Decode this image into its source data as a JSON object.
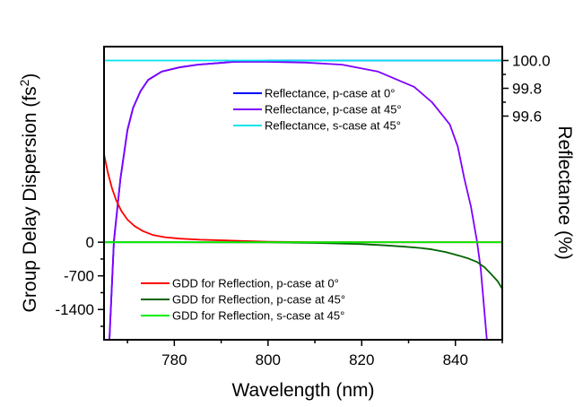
{
  "chart_data": {
    "type": "line",
    "title": "",
    "xlabel": "Wavelength (nm)",
    "ylabel_left": "Group Delay Dispersion (fs2)",
    "ylabel_left_parts": {
      "main": "Group Delay Dispersion (fs",
      "sup": "2",
      "end": ")"
    },
    "ylabel_right": "Reflectance (%)",
    "xlim": [
      765,
      850
    ],
    "ylim_left": [
      -2030,
      4070
    ],
    "ylim_right": [
      97.99,
      100.1
    ],
    "x_ticks": [
      780,
      800,
      820,
      840
    ],
    "x_minor_ticks": [
      770,
      790,
      810,
      830,
      850
    ],
    "x_tick_labels": [
      "780",
      "800",
      "820",
      "840"
    ],
    "y_left_ticks": [
      0,
      -700,
      -1400
    ],
    "y_left_tick_labels": [
      "0",
      "-700",
      "-1400"
    ],
    "y_left_minor_ticks": [
      -350,
      -1050,
      -1750
    ],
    "y_right_ticks": [
      100.0,
      99.8,
      99.6
    ],
    "y_right_tick_labels": [
      "100.0",
      "99.8",
      "99.6"
    ],
    "y_right_minor_ticks": [
      99.9,
      99.7
    ],
    "grid": false,
    "legends": [
      {
        "placement": "upper-center",
        "entries": [
          0,
          1,
          2
        ]
      },
      {
        "placement": "lower-left",
        "entries": [
          3,
          4,
          5
        ]
      }
    ],
    "series": [
      {
        "name": "Reflectance, p-case at 0°",
        "axis": "right",
        "color": "#0000ff",
        "x": [
          766.15,
          767.1,
          768.5,
          770.0,
          771.2,
          772.8,
          774.4,
          777.3,
          781.0,
          785.0,
          792.7,
          800.4,
          810.0,
          820.0,
          830.0,
          840.0,
          850.0
        ],
        "y": [
          97.99,
          98.7,
          99.15,
          99.5,
          99.66,
          99.78,
          99.86,
          99.92,
          99.95,
          99.97,
          99.99,
          100.0,
          100.0,
          100.0,
          100.0,
          100.0,
          100.0
        ]
      },
      {
        "name": "Reflectance, p-case at 45°",
        "axis": "right",
        "color": "#7f00ff",
        "x": [
          766.15,
          767.1,
          768.5,
          770.0,
          771.2,
          772.8,
          774.4,
          777.3,
          781.0,
          785.0,
          792.7,
          800.0,
          808.0,
          815.8,
          823.5,
          831.2,
          835.0,
          838.8,
          840.5,
          841.9,
          843.3,
          844.6,
          845.4,
          846.7
        ],
        "y": [
          97.99,
          98.7,
          99.15,
          99.5,
          99.66,
          99.78,
          99.86,
          99.92,
          99.95,
          99.97,
          99.99,
          99.99,
          99.985,
          99.97,
          99.92,
          99.81,
          99.7,
          99.54,
          99.38,
          99.15,
          98.95,
          98.7,
          98.5,
          97.99
        ]
      },
      {
        "name": "Reflectance, s-case at 45°",
        "axis": "right",
        "color": "#00e5ee",
        "x": [
          765,
          850
        ],
        "y": [
          100.0,
          100.0
        ]
      },
      {
        "name": "GDD for Reflection, p-case at 0°",
        "axis": "left",
        "color": "#ff0000",
        "x": [
          765.0,
          765.8,
          766.7,
          767.6,
          768.7,
          770.0,
          771.5,
          773.3,
          775.4,
          778.0,
          781.2,
          785.5,
          790.8,
          800.0,
          810.0,
          820.0,
          830.0,
          840.0,
          850.0
        ],
        "y": [
          1830,
          1450,
          1120,
          870,
          650,
          470,
          336,
          230,
          150,
          105,
          75,
          52,
          37,
          10,
          2,
          0,
          0,
          0,
          0
        ]
      },
      {
        "name": "GDD for Reflection, p-case at 45°",
        "axis": "left",
        "color": "#006400",
        "x": [
          765.0,
          780.0,
          800.0,
          810.0,
          819.6,
          825.0,
          829.2,
          832.5,
          835.0,
          838.0,
          840.8,
          842.8,
          844.6,
          846.2,
          847.5,
          849.0,
          850.0
        ],
        "y": [
          0,
          0,
          -5,
          -15,
          -37,
          -65,
          -93,
          -120,
          -150,
          -205,
          -280,
          -340,
          -410,
          -520,
          -650,
          -810,
          -970
        ]
      },
      {
        "name": "GDD for Reflection, s-case at 45°",
        "axis": "left",
        "color": "#00ee00",
        "x": [
          765,
          850
        ],
        "y": [
          0,
          0
        ]
      }
    ]
  }
}
